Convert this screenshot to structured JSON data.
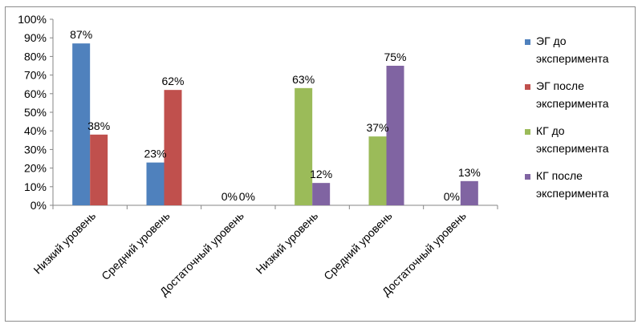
{
  "chart_data": {
    "type": "bar",
    "categories": [
      "Низкий уровень",
      "Средний уровень",
      "Достаточный уровень",
      "Низкий уровень",
      "Средний уровень",
      "Достаточный уровень"
    ],
    "series": [
      {
        "name": "ЭГ до эксперимента",
        "color": "#4F81BD",
        "values": [
          87,
          23,
          0,
          null,
          null,
          null
        ],
        "labels": [
          "87%",
          "23%",
          "0%",
          "",
          "",
          ""
        ]
      },
      {
        "name": "ЭГ после эксперимента",
        "color": "#C0504D",
        "values": [
          38,
          62,
          0,
          null,
          null,
          null
        ],
        "labels": [
          "38%",
          "62%",
          "0%",
          "",
          "",
          ""
        ]
      },
      {
        "name": "КГ до эксперимента",
        "color": "#9BBB59",
        "values": [
          null,
          null,
          null,
          63,
          37,
          0
        ],
        "labels": [
          "",
          "",
          "",
          "63%",
          "37%",
          "0%"
        ]
      },
      {
        "name": "КГ после эксперимента",
        "color": "#8064A2",
        "values": [
          null,
          null,
          null,
          12,
          75,
          13
        ],
        "labels": [
          "",
          "",
          "",
          "12%",
          "75%",
          "13%"
        ]
      }
    ],
    "ylim": [
      0,
      100
    ],
    "yticks": [
      "0%",
      "10%",
      "20%",
      "30%",
      "40%",
      "50%",
      "60%",
      "70%",
      "80%",
      "90%",
      "100%"
    ],
    "legend_position": "right"
  }
}
